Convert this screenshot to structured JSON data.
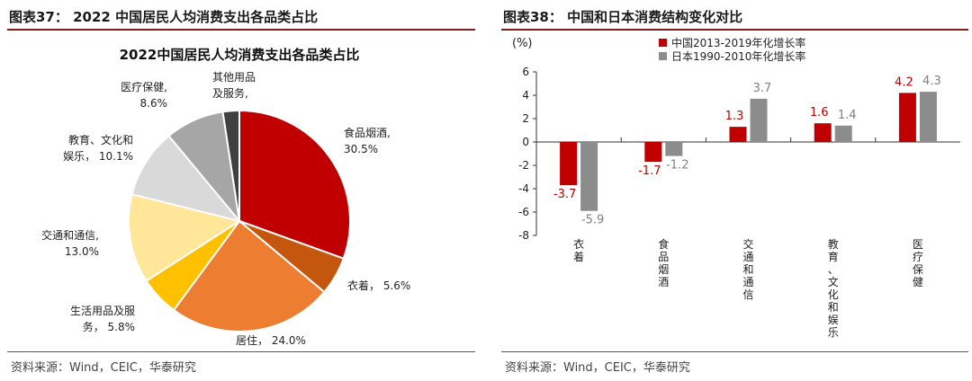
{
  "left": {
    "fig_title": "图表37： 2022 中国居民人均消费支出各品类占比",
    "source": "资料来源：Wind，CEIC，华泰研究",
    "chart_data": {
      "type": "pie",
      "title": "2022中国居民人均消费支出各品类占比",
      "slices": [
        {
          "name": "食品烟酒",
          "value": 30.5,
          "label_lines": [
            "食品烟酒,",
            "30.5%"
          ],
          "color": "#c00000"
        },
        {
          "name": "衣着",
          "value": 5.6,
          "label_lines": [
            "衣着， 5.6%"
          ],
          "color": "#c5560e"
        },
        {
          "name": "居住",
          "value": 24.0,
          "label_lines": [
            "居住， 24.0%"
          ],
          "color": "#ed7d31"
        },
        {
          "name": "生活用品及服务",
          "value": 5.8,
          "label_lines": [
            "生活用品及服",
            "务， 5.8%"
          ],
          "color": "#ffc000"
        },
        {
          "name": "交通和通信",
          "value": 13.0,
          "label_lines": [
            "交通和通信,",
            "13.0%"
          ],
          "color": "#ffe699"
        },
        {
          "name": "教育、文化和娱乐",
          "value": 10.1,
          "label_lines": [
            "教育、文化和",
            "娱乐， 10.1%"
          ],
          "color": "#d9d9d9"
        },
        {
          "name": "医疗保健",
          "value": 8.6,
          "label_lines": [
            "医疗保健,",
            "8.6%"
          ],
          "color": "#a6a6a6"
        },
        {
          "name": "其他用品及服务",
          "value": 2.4,
          "label_lines": [
            "其他用品",
            "及服务,"
          ],
          "color": "#404040"
        }
      ]
    }
  },
  "right": {
    "fig_title": "图表38： 中国和日本消费结构变化对比",
    "source": "资料来源：Wind，CEIC，华泰研究",
    "chart_data": {
      "type": "bar",
      "ylabel": "(%)",
      "ylim": [
        -8,
        6
      ],
      "yticks": [
        -8,
        -6,
        -4,
        -2,
        0,
        2,
        4,
        6
      ],
      "categories": [
        "衣着",
        "食品烟酒",
        "交通和通信",
        "教育、文化和娱乐",
        "医疗保健"
      ],
      "series": [
        {
          "name": "中国2013-2019年化增长率",
          "values": [
            -3.7,
            -1.7,
            1.3,
            1.6,
            4.2
          ],
          "color": "#c00000",
          "label_color": "#c00000"
        },
        {
          "name": "日本1990-2010年化增长率",
          "values": [
            -5.9,
            -1.2,
            3.7,
            1.4,
            4.3
          ],
          "color": "#8c8c8c",
          "label_color": "#7f7f7f"
        }
      ]
    }
  },
  "watermark": "资料来源：Wind，CEIC，华泰研究"
}
